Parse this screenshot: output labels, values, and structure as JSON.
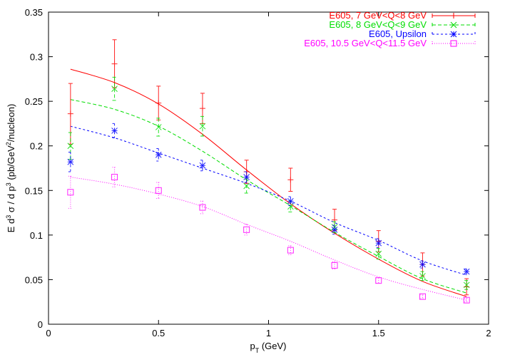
{
  "chart_data": {
    "type": "scatter",
    "title": "",
    "xlabel": "p_T (GeV)",
    "ylabel": "E d^3 σ / d p^3 (pb/GeV^2/nucleon)",
    "xlim": [
      0,
      2
    ],
    "ylim": [
      0,
      0.35
    ],
    "xticks": [
      "0",
      "0.5",
      "1",
      "1.5",
      "2"
    ],
    "xtick_values": [
      0,
      0.5,
      1,
      1.5,
      2
    ],
    "yticks": [
      "0",
      "0.05",
      "0.1",
      "0.15",
      "0.2",
      "0.25",
      "0.3",
      "0.35"
    ],
    "ytick_values": [
      0,
      0.05,
      0.1,
      0.15,
      0.2,
      0.25,
      0.3,
      0.35
    ],
    "grid": false,
    "legend_position": "top-right",
    "x": [
      0.1,
      0.3,
      0.5,
      0.7,
      0.9,
      1.1,
      1.3,
      1.5,
      1.7,
      1.9
    ],
    "series": [
      {
        "name": "E605, 7 GeV<Q<8 GeV",
        "color": "#ff0000",
        "marker": "plus",
        "dash": "",
        "y": [
          0.236,
          0.292,
          0.248,
          0.242,
          0.171,
          0.162,
          0.117,
          0.093,
          0.067,
          0.042
        ],
        "err": [
          0.034,
          0.027,
          0.019,
          0.017,
          0.013,
          0.013,
          0.012,
          0.012,
          0.013,
          0.009
        ],
        "curve": [
          0.286,
          0.271,
          0.247,
          0.213,
          0.173,
          0.135,
          0.102,
          0.073,
          0.048,
          0.031
        ]
      },
      {
        "name": "E605, 8 GeV<Q<9 GeV",
        "color": "#00dd00",
        "marker": "cross",
        "dash": "5,3",
        "y": [
          0.2,
          0.264,
          0.221,
          0.222,
          0.155,
          0.132,
          0.109,
          0.079,
          0.054,
          0.044
        ],
        "err": [
          0.015,
          0.013,
          0.01,
          0.011,
          0.008,
          0.006,
          0.006,
          0.006,
          0.005,
          0.005
        ],
        "curve": [
          0.252,
          0.241,
          0.222,
          0.194,
          0.162,
          0.133,
          0.103,
          0.076,
          0.051,
          0.035
        ]
      },
      {
        "name": "E605, Upsilon",
        "color": "#0000ff",
        "marker": "star",
        "dash": "3,3",
        "y": [
          0.182,
          0.217,
          0.19,
          0.178,
          0.165,
          0.138,
          0.106,
          0.091,
          0.067,
          0.059
        ],
        "err": [
          0.011,
          0.008,
          0.007,
          0.006,
          0.006,
          0.005,
          0.005,
          0.005,
          0.004,
          0.003
        ],
        "curve": [
          0.222,
          0.209,
          0.192,
          0.175,
          0.158,
          0.138,
          0.114,
          0.094,
          0.071,
          0.055
        ]
      },
      {
        "name": "E605, 10.5 GeV<Q<11.5 GeV",
        "color": "#ff00ff",
        "marker": "square",
        "dash": "1,2",
        "y": [
          0.148,
          0.165,
          0.15,
          0.131,
          0.106,
          0.083,
          0.066,
          0.049,
          0.031,
          0.027
        ],
        "err": [
          0.018,
          0.011,
          0.009,
          0.007,
          0.006,
          0.005,
          0.004,
          0.003,
          0.002,
          0.002
        ],
        "curve": [
          0.165,
          0.157,
          0.146,
          0.132,
          0.112,
          0.093,
          0.072,
          0.053,
          0.039,
          0.027
        ]
      }
    ]
  }
}
